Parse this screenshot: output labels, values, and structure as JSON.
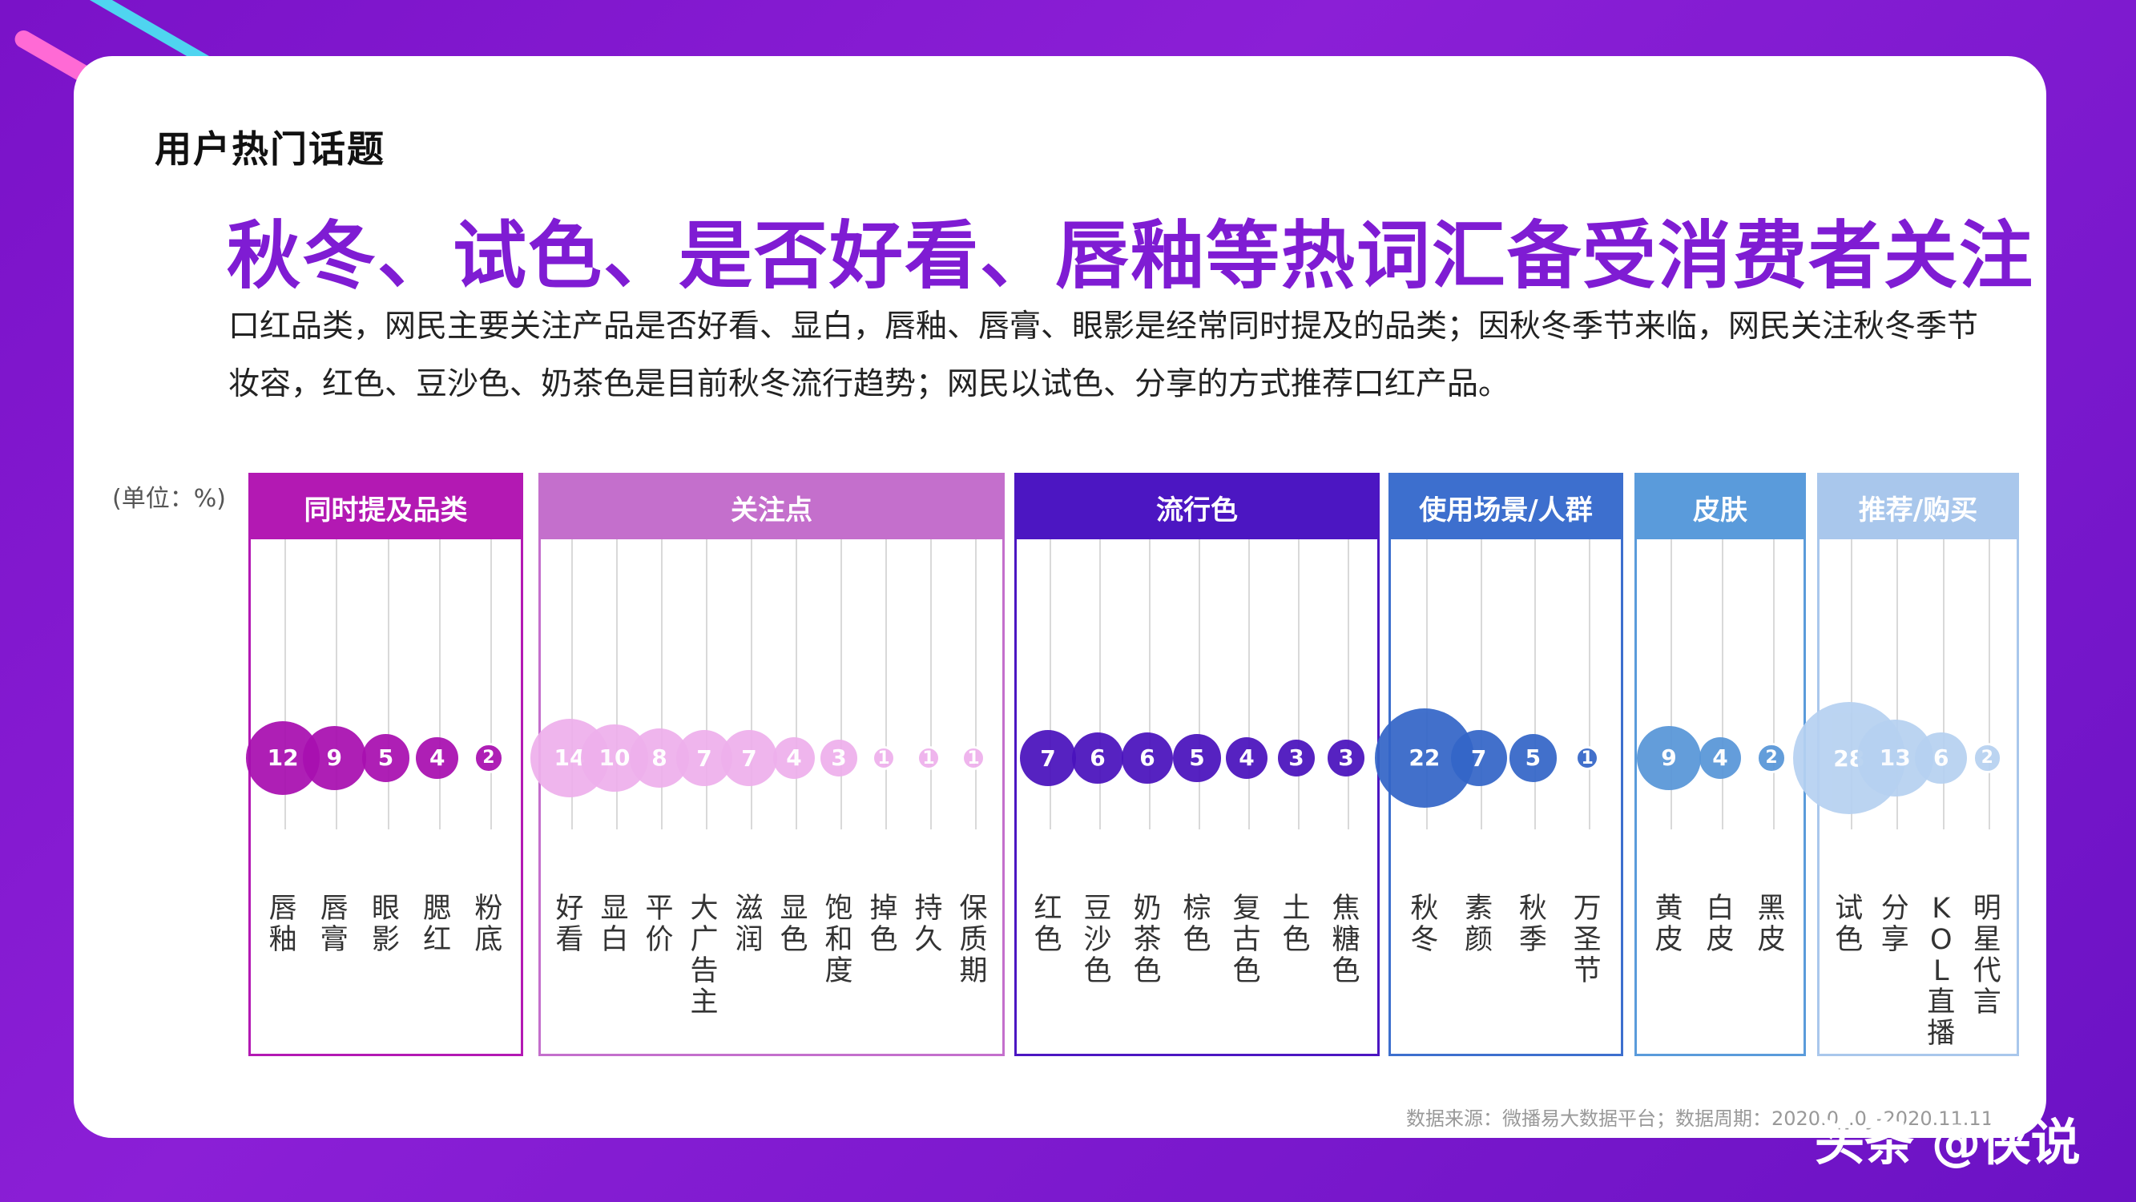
{
  "header": {
    "section_title": "用户热门话题",
    "headline": "秋冬、试色、是否好看、唇釉等热词汇备受消费者关注",
    "description": "口红品类，网民主要关注产品是否好看、显白，唇釉、唇膏、眼影是经常同时提及的品类；因秋冬季节来临，网民关注秋冬季节妆容，红色、豆沙色、奶茶色是目前秋冬流行趋势；网民以试色、分享的方式推荐口红产品。"
  },
  "unit_label": "(单位：%)",
  "footer": {
    "source": "数据来源：微播易大数据平台；数据周期：2020.0_.0_-2020.11.11",
    "watermark": "头条 @侠说"
  },
  "colors": {
    "background": "#7a12c8",
    "headline": "#7f1cd3"
  },
  "chart_data": [
    {
      "type": "bubble",
      "title": "同时提及品类",
      "header_color": "#b319b3",
      "bubble_color": "#a80fb0",
      "categories": [
        "唇釉",
        "唇膏",
        "眼影",
        "腮红",
        "粉底"
      ],
      "values": [
        12,
        9,
        5,
        4,
        2
      ]
    },
    {
      "type": "bubble",
      "title": "关注点",
      "header_color": "#c46fcc",
      "bubble_color": "#eeb0ec",
      "categories": [
        "好看",
        "显白",
        "平价",
        "大广告主",
        "滋润",
        "显色",
        "饱和度",
        "掉色",
        "持久",
        "保质期"
      ],
      "values": [
        14,
        10,
        8,
        7,
        7,
        4,
        3,
        1,
        1,
        1
      ]
    },
    {
      "type": "bubble",
      "title": "流行色",
      "header_color": "#4c16c2",
      "bubble_color": "#4a12bd",
      "categories": [
        "红色",
        "豆沙色",
        "奶茶色",
        "棕色",
        "复古色",
        "土色",
        "焦糖色"
      ],
      "values": [
        7,
        6,
        6,
        5,
        4,
        3,
        3
      ]
    },
    {
      "type": "bubble",
      "title": "使用场景/人群",
      "header_color": "#3d6fce",
      "bubble_color": "#3466c8",
      "categories": [
        "秋冬",
        "素颜",
        "秋季",
        "万圣节"
      ],
      "values": [
        22,
        7,
        5,
        1
      ]
    },
    {
      "type": "bubble",
      "title": "皮肤",
      "header_color": "#5a9bdb",
      "bubble_color": "#5896d8",
      "categories": [
        "黄皮",
        "白皮",
        "黑皮"
      ],
      "values": [
        9,
        4,
        2
      ]
    },
    {
      "type": "bubble",
      "title": "推荐/购买",
      "header_color": "#a9c7ec",
      "bubble_color": "#b6d1f1",
      "categories": [
        "试色",
        "分享",
        "KOL直播",
        "明星代言"
      ],
      "values": [
        28,
        13,
        6,
        2
      ]
    }
  ]
}
